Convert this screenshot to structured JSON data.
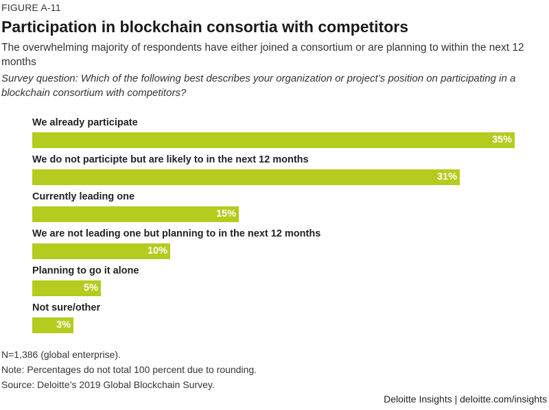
{
  "figure_label": "FIGURE A-11",
  "title": "Participation in blockchain consortia with competitors",
  "subtitle": "The overwhelming majority of respondents have either joined a consortium or are planning to within the next 12 months",
  "question": "Survey question: Which of the following best describes your organization or project’s position on participating in a blockchain consortium with competitors?",
  "chart_data": {
    "type": "bar",
    "orientation": "horizontal",
    "categories": [
      "We already participate",
      "We do not participte but are likely to in the next 12 months",
      "Currently leading one",
      "We are not leading one but planning to in the next 12 months",
      "Planning to go it alone",
      "Not sure/other"
    ],
    "values": [
      35,
      31,
      15,
      10,
      5,
      3
    ],
    "value_labels": [
      "35%",
      "31%",
      "15%",
      "10%",
      "5%",
      "3%"
    ],
    "unit": "%",
    "xlim": [
      0,
      35
    ],
    "bar_color": "#b4cc1e",
    "grid": false,
    "legend": "none"
  },
  "footnotes": {
    "sample": "N=1,386 (global enterprise).",
    "note": "Note: Percentages do not total 100 percent due to rounding.",
    "source": "Source: Deloitte’s 2019 Global Blockchain Survey."
  },
  "credit": "Deloitte Insights | deloitte.com/insights"
}
